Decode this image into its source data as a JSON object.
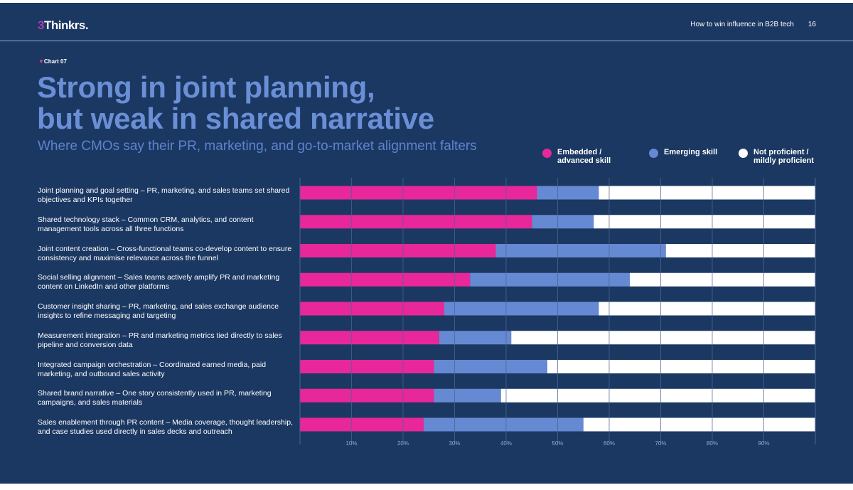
{
  "header": {
    "logo": "3Thinkrs.",
    "logo_mark": "3",
    "logo_text": "Thinkrs.",
    "report_title": "How to win influence in B2B tech",
    "page_number": "16"
  },
  "tag": "Chart 07",
  "title_line1": "Strong in joint planning,",
  "title_line2": "but weak in shared narrative",
  "subtitle": "Where CMOs say their PR, marketing, and go-to-market alignment falters",
  "colors": {
    "background": "#1b3862",
    "embedded": "#e8279a",
    "emerging": "#6589d2",
    "not_proficient": "#ffffff",
    "title": "#6b8fd6"
  },
  "chart_data": {
    "type": "bar",
    "orientation": "horizontal",
    "stacked": true,
    "xlim": [
      0,
      100
    ],
    "grid": true,
    "legend_placement": "top-right",
    "xticks": [
      "10%",
      "20%",
      "30%",
      "40%",
      "50%",
      "60%",
      "70%",
      "80%",
      "90%"
    ],
    "categories": [
      "Joint planning and goal setting – PR, marketing, and sales teams set shared objectives and KPIs together",
      "Shared technology stack – Common CRM, analytics, and content management tools across all three functions",
      "Joint content creation – Cross-functional teams co-develop content to ensure consistency and maximise relevance across the funnel",
      "Social selling alignment – Sales teams actively amplify PR and marketing content on LinkedIn and other platforms",
      "Customer insight sharing – PR, marketing, and sales exchange audience insights to refine messaging and targeting",
      "Measurement integration – PR and marketing metrics tied directly to sales pipeline and conversion data",
      "Integrated campaign orchestration – Coordinated earned media, paid marketing, and outbound sales activity",
      "Shared brand narrative – One story consistently used in PR, marketing campaigns, and sales materials",
      "Sales enablement through PR content – Media coverage, thought leadership, and case studies used directly in sales decks and outreach"
    ],
    "series": [
      {
        "name": "Embedded / advanced skill",
        "color": "#e8279a",
        "values": [
          46,
          45,
          38,
          33,
          28,
          27,
          26,
          26,
          24
        ]
      },
      {
        "name": "Emerging skill",
        "color": "#6589d2",
        "values": [
          12,
          12,
          33,
          31,
          30,
          14,
          22,
          13,
          31
        ]
      },
      {
        "name": "Not proficient / mildly proficient",
        "color": "#ffffff",
        "values": [
          42,
          43,
          29,
          36,
          42,
          59,
          52,
          61,
          45
        ]
      }
    ]
  }
}
